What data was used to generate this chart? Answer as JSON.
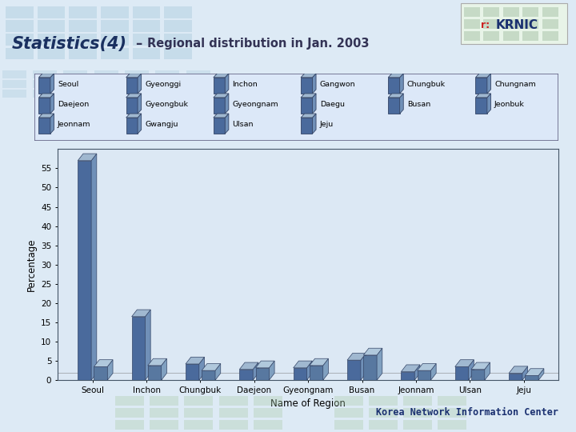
{
  "title_stats": "Statistics(4)",
  "title_dash": "–",
  "title_sub": "Regional distribution in Jan. 2003",
  "xlabel": "Name of Region",
  "ylabel": "Percentage",
  "footer": "Korea Network Information Center",
  "bg_color": "#ddeaf5",
  "header_bg": "#ffffff",
  "plot_bg_color": "#dce8f4",
  "chart_frame_color": "#ffffff",
  "bar_color_front": "#4a6a9c",
  "bar_color_side": "#7090b8",
  "bar_color_top": "#a0b8d0",
  "bar2_color_front": "#5878a0",
  "bar2_color_side": "#80a0c0",
  "bar2_color_top": "#b0c8dc",
  "legend_bg": "#dce8f8",
  "legend_border": "#666688",
  "sep_color": "#2255aa",
  "ylim_max": 60,
  "yticks": [
    0,
    5,
    10,
    15,
    20,
    25,
    30,
    35,
    40,
    45,
    50,
    55
  ],
  "regions": [
    "Seoul",
    "Inchon",
    "Chungbuk",
    "Daejeon",
    "Gyeongnam",
    "Busan",
    "Jeonnam",
    "Ulsan",
    "Jeju"
  ],
  "values1": [
    57.0,
    16.5,
    4.2,
    2.8,
    3.2,
    5.2,
    2.2,
    3.5,
    1.8
  ],
  "values2": [
    3.5,
    3.8,
    2.5,
    3.2,
    3.8,
    6.5,
    2.5,
    2.8,
    1.2
  ],
  "legend_items": [
    "Seoul",
    "Gyeonggi",
    "Inchon",
    "Gangwon",
    "Chungbuk",
    "Chungnam",
    "Daejeon",
    "Gyeongbuk",
    "Gyeongnam",
    "Daegu",
    "Busan",
    "Jeonbuk",
    "Jeonnam",
    "Gwangju",
    "Ulsan",
    "Jeju"
  ],
  "title_color": "#1a3060",
  "sub_color": "#222244",
  "footer_color": "#1a3070",
  "krnic_r_color": "#cc2222",
  "krnic_text_color": "#1a3070"
}
